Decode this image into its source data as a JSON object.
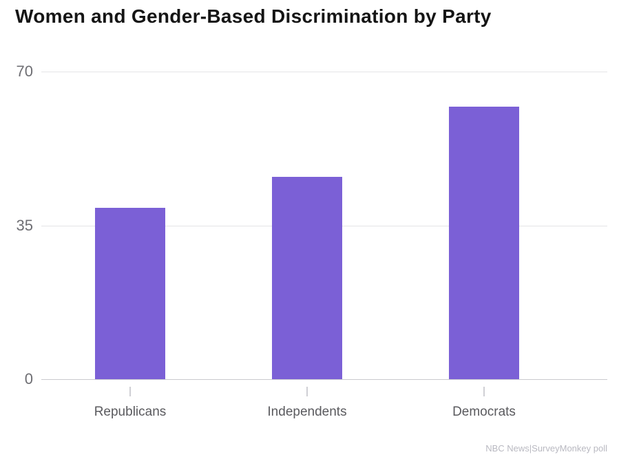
{
  "title": "Women and Gender-Based Discrimination by Party",
  "source": "NBC News|SurveyMonkey poll",
  "colors": {
    "bar": "#7b60d6",
    "title_text": "#151515",
    "axis_tick_label": "#6e6e73",
    "category_label": "#5a5a5e",
    "gridline": "#e4e4e6",
    "baseline": "#c9c9ce",
    "tick_mark": "#cfcfd4",
    "source_text": "#b9b9c1",
    "background": "#ffffff"
  },
  "chart_data": {
    "type": "bar",
    "categories": [
      "Republicans",
      "Independents",
      "Democrats"
    ],
    "values": [
      39,
      46,
      62
    ],
    "title": "Women and Gender-Based Discrimination by Party",
    "xlabel": "",
    "ylabel": "",
    "ylim": [
      0,
      70
    ],
    "yticks": [
      0,
      35,
      70
    ],
    "grid": true,
    "legend": false,
    "bar_color": "#7b60d6",
    "source": "NBC News|SurveyMonkey poll"
  }
}
